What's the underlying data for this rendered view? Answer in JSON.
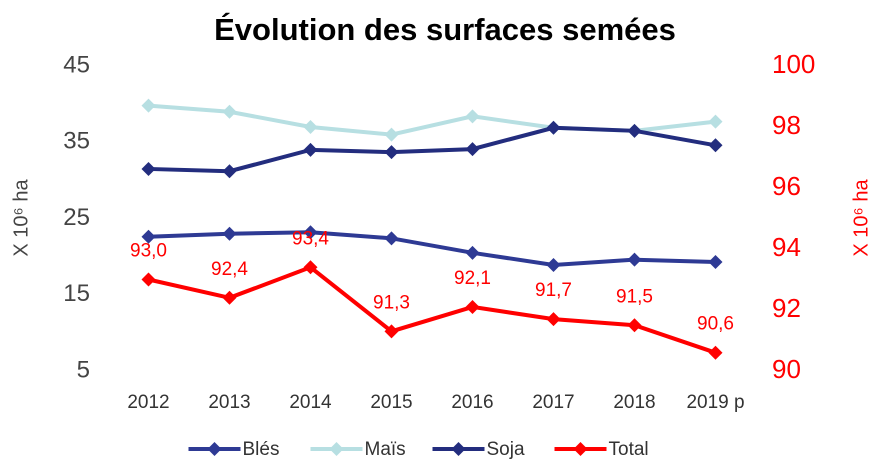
{
  "chart_data": {
    "type": "line",
    "title": "Évolution des surfaces semées",
    "y_label": "X 10⁶ ha",
    "y2_label": "X 10⁶ ha",
    "categories": [
      "2012",
      "2013",
      "2014",
      "2015",
      "2016",
      "2017",
      "2018",
      "2019 p"
    ],
    "series": [
      {
        "name": "Blés",
        "color": "#2e3a94",
        "values": [
          22.6,
          23.0,
          23.2,
          22.4,
          20.5,
          18.9,
          19.6,
          19.3
        ]
      },
      {
        "name": "Maïs",
        "color": "#b7dfe2",
        "values": [
          39.8,
          39.0,
          37.0,
          36.0,
          38.4,
          36.9,
          36.5,
          37.7
        ]
      },
      {
        "name": "Soja",
        "color": "#232d7e",
        "values": [
          31.5,
          31.2,
          34.0,
          33.7,
          34.1,
          36.9,
          36.5,
          34.6
        ]
      },
      {
        "name": "Total",
        "color": "#ff0000",
        "axis": "y2",
        "values": [
          93.0,
          92.4,
          93.4,
          91.3,
          92.1,
          91.7,
          91.5,
          90.6
        ],
        "value_labels": [
          "93,0",
          "92,4",
          "93,4",
          "91,3",
          "92,1",
          "91,7",
          "91,5",
          "90,6"
        ]
      }
    ],
    "ylim": [
      5,
      45
    ],
    "yticks": [
      5,
      15,
      25,
      35,
      45
    ],
    "y2lim": [
      90,
      100
    ],
    "y2ticks": [
      90,
      92,
      94,
      96,
      98,
      100
    ],
    "grid": false,
    "legend": "bottom"
  }
}
